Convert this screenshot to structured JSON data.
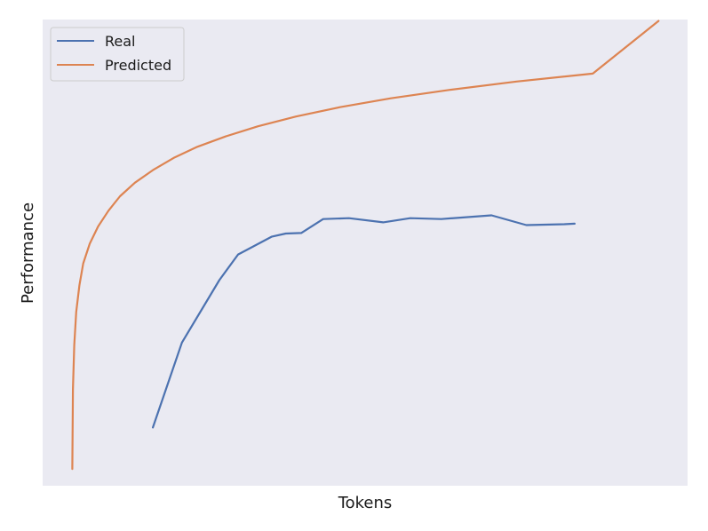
{
  "chart_data": {
    "type": "line",
    "title": "",
    "xlabel": "Tokens",
    "ylabel": "Performance",
    "xlim": [
      0,
      100
    ],
    "ylim": [
      0,
      100
    ],
    "x_ticks_shown": false,
    "y_ticks_shown": false,
    "grid": false,
    "legend_position": "top-left",
    "background_color": "#eaeaf2",
    "series": [
      {
        "name": "Real",
        "color": "#4c72b0",
        "x": [
          17.1,
          21.6,
          27.4,
          30.3,
          35.5,
          37.7,
          40.1,
          43.5,
          47.5,
          52.8,
          57.0,
          61.8,
          69.6,
          75.0,
          80.9,
          82.5
        ],
        "y": [
          12.5,
          30.7,
          44.1,
          49.6,
          53.4,
          54.1,
          54.2,
          57.2,
          57.4,
          56.5,
          57.4,
          57.2,
          58.0,
          55.9,
          56.1,
          56.2
        ]
      },
      {
        "name": "Predicted",
        "color": "#dd8452",
        "x": [
          4.6,
          4.7,
          4.9,
          5.2,
          5.7,
          6.3,
          7.3,
          8.6,
          10.2,
          12.0,
          14.3,
          17.1,
          20.3,
          24.0,
          28.3,
          33.4,
          39.3,
          46.1,
          54.0,
          63.0,
          73.5,
          85.3,
          95.5
        ],
        "y": [
          3.6,
          20.7,
          30.2,
          37.3,
          43.0,
          47.7,
          51.9,
          55.6,
          59.0,
          62.1,
          65.0,
          67.7,
          70.3,
          72.7,
          74.9,
          77.1,
          79.2,
          81.2,
          83.1,
          84.9,
          86.7,
          88.4,
          99.7
        ]
      }
    ]
  }
}
